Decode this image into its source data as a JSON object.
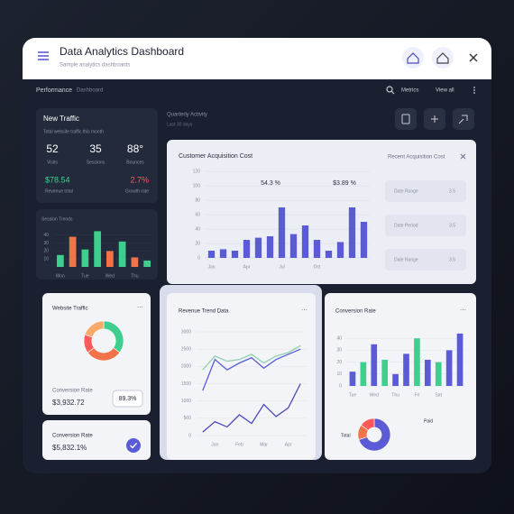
{
  "header": {
    "title": "Data Analytics Dashboard",
    "subtitle": "Sample analytics dashboards"
  },
  "toolbar": {
    "section": "Performance",
    "view": "Dashboard",
    "search": "Metrics",
    "link": "View all"
  },
  "traffic": {
    "title": "New Traffic",
    "subtitle": "Total website traffic this month",
    "stats": [
      {
        "value": "52",
        "label": "Visits"
      },
      {
        "value": "35",
        "label": "Sessions"
      },
      {
        "value": "88°",
        "label": "Bounces"
      }
    ],
    "highlights": [
      {
        "value": "$78.54",
        "label": "Revenue total",
        "color": "#3ecf8e"
      },
      {
        "value": "2.7%",
        "label": "Growth rate",
        "color": "#ff5a5a"
      }
    ]
  },
  "sessions": {
    "type": "bar",
    "title": "Session Trends",
    "categories": [
      "Mon",
      null,
      "Tue",
      null,
      "Wed",
      null,
      "Thu",
      null
    ],
    "values": [
      15,
      38,
      22,
      45,
      20,
      32,
      12,
      8
    ],
    "colors": [
      "#3ecf8e",
      "#f2734a",
      "#3ecf8e",
      "#3ecf8e",
      "#f2734a",
      "#3ecf8e",
      "#f2734a",
      "#3ecf8e"
    ],
    "ylim": [
      0,
      50
    ],
    "yticks": [
      10,
      20,
      30,
      40
    ]
  },
  "quarterly": {
    "title": "Quarterly Activity",
    "subtitle": "Last 30 days"
  },
  "acquisition": {
    "type": "bar",
    "title": "Customer Acquisition Cost",
    "categories": [
      "Jan",
      null,
      null,
      "Apr",
      null,
      null,
      "Jul",
      null,
      null,
      "Oct",
      null,
      null,
      null,
      null
    ],
    "values": [
      10,
      12,
      10,
      25,
      28,
      30,
      70,
      33,
      45,
      25,
      10,
      22,
      70,
      50
    ],
    "color": "#5b5bd6",
    "ylim": [
      0,
      120
    ],
    "yticks": [
      0,
      20,
      40,
      60,
      80,
      100,
      120
    ],
    "annotations": [
      "54.3 %",
      "$3.89 %"
    ]
  },
  "recent": {
    "title": "Recent Acquisition Cost",
    "rows": [
      {
        "label": "Date Range",
        "value": "3.5"
      },
      {
        "label": "Date Period",
        "value": "3.5"
      },
      {
        "label": "Date Range",
        "value": "3.5"
      }
    ]
  },
  "website_traffic": {
    "type": "pie",
    "title": "Website Traffic",
    "values": [
      35,
      30,
      15,
      20
    ],
    "colors": [
      "#3ecf8e",
      "#f2734a",
      "#ff5a5a",
      "#f7a86a"
    ],
    "stat_label": "Conversion Rate",
    "stat_value": "$3,932.72",
    "badge": "89.3%"
  },
  "conversion_summary": {
    "title": "Conversion Rate",
    "value": "$5,832.1%"
  },
  "revenue": {
    "type": "line",
    "title": "Revenue Trend Data",
    "categories": [
      null,
      "Jan",
      null,
      "Feb",
      null,
      "Mar",
      null,
      "Apr",
      null
    ],
    "series": [
      {
        "color": "#8fcfb0",
        "values": [
          1900,
          2300,
          2150,
          2200,
          2350,
          2100,
          2300,
          2400,
          2600
        ]
      },
      {
        "color": "#5b5bd6",
        "values": [
          1300,
          2200,
          1900,
          2100,
          2250,
          1950,
          2200,
          2350,
          2500
        ]
      },
      {
        "color": "#4a4ab8",
        "values": [
          100,
          400,
          250,
          600,
          350,
          900,
          550,
          800,
          1500
        ]
      }
    ],
    "ylim": [
      0,
      3000
    ],
    "yticks": [
      0,
      500,
      1000,
      1500,
      2000,
      2500,
      3000
    ]
  },
  "conversion": {
    "type": "bar",
    "title": "Conversion Rate",
    "categories": [
      "Tue",
      null,
      "Wed",
      null,
      "Thu",
      null,
      "Fri",
      null,
      "Sat",
      null,
      null
    ],
    "values": [
      12,
      20,
      35,
      22,
      10,
      27,
      40,
      22,
      20,
      30,
      44
    ],
    "colors": [
      "#5b5bd6",
      "#3ecf8e",
      "#5b5bd6",
      "#3ecf8e",
      "#5b5bd6",
      "#5b5bd6",
      "#3ecf8e",
      "#5b5bd6",
      "#3ecf8e",
      "#5b5bd6",
      "#5b5bd6"
    ],
    "ylim": [
      0,
      50
    ],
    "yticks": [
      0,
      10,
      20,
      30,
      40
    ]
  },
  "conversion_split": {
    "type": "pie",
    "values": [
      70,
      15,
      15
    ],
    "colors": [
      "#5b5bd6",
      "#f2734a",
      "#ff5a5a"
    ],
    "legend": [
      "Total",
      "Paid"
    ]
  }
}
